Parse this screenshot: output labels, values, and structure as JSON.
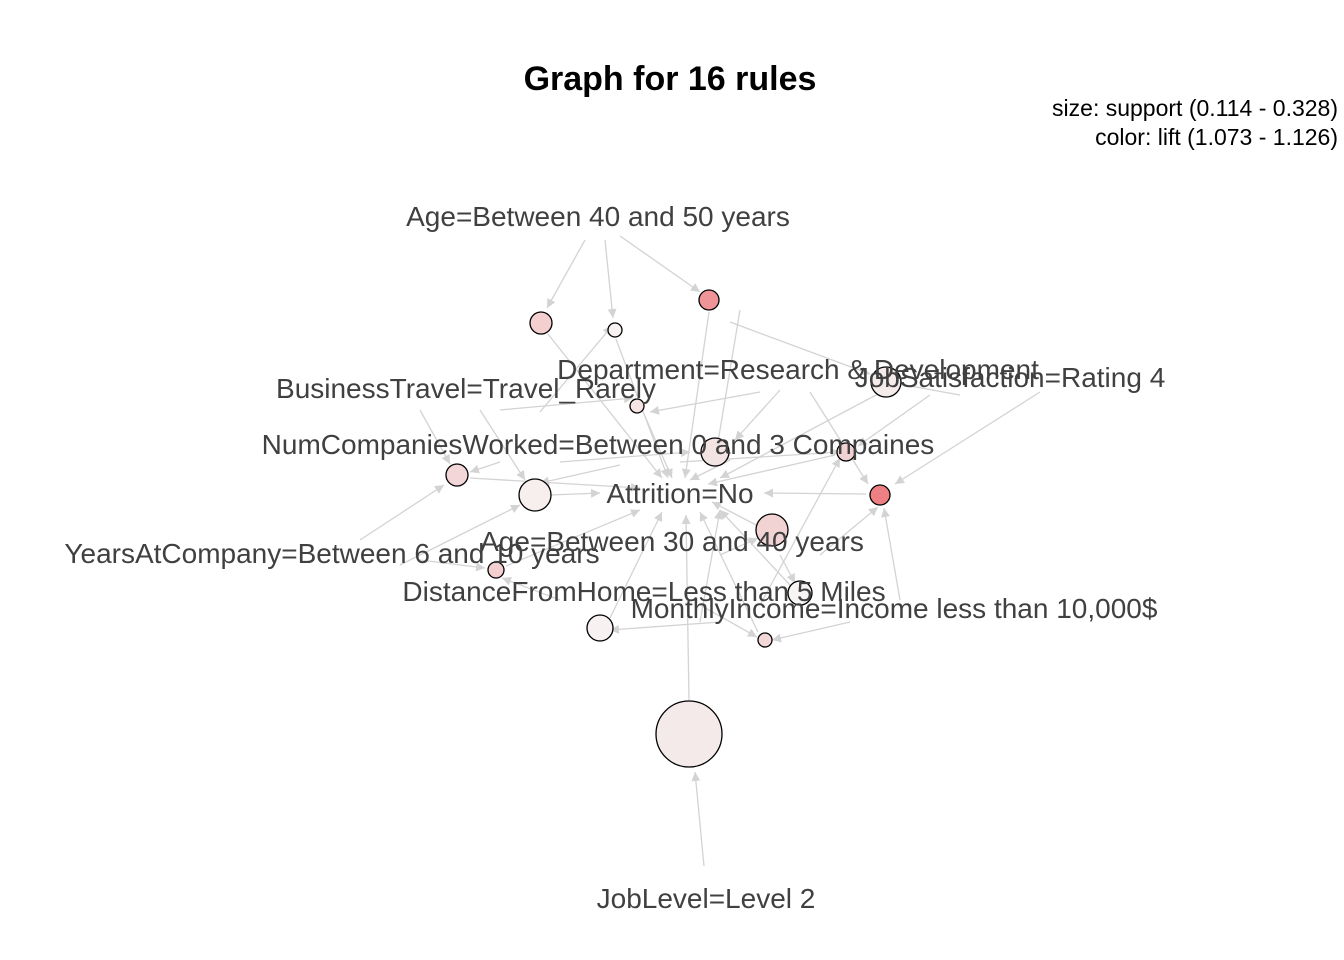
{
  "title": "Graph for 16 rules",
  "legend": {
    "size_line": "size: support (0.114 - 0.328)",
    "color_line": "color: lift (1.073 - 1.126)"
  },
  "items": [
    {
      "id": "age4050",
      "label": "Age=Between 40 and 50 years"
    },
    {
      "id": "dept",
      "label": "Department=Research & Development"
    },
    {
      "id": "jobsat",
      "label": "JobSatisfaction=Rating 4"
    },
    {
      "id": "travel",
      "label": "BusinessTravel=Travel_Rarely"
    },
    {
      "id": "numcomp",
      "label": "NumCompaniesWorked=Between 0 and 3 Compaines"
    },
    {
      "id": "attrition",
      "label": "Attrition=No"
    },
    {
      "id": "yearsco",
      "label": "YearsAtCompany=Between 6 and 10 years"
    },
    {
      "id": "age3040",
      "label": "Age=Between 30 and 40 years"
    },
    {
      "id": "distance",
      "label": "DistanceFromHome=Less than 5 Miles"
    },
    {
      "id": "income",
      "label": "MonthlyIncome=Income less than 10,000$"
    },
    {
      "id": "joblevel",
      "label": "JobLevel=Level 2"
    }
  ],
  "colors": {
    "edge": "#d3d3d3",
    "label": "#404040",
    "node_stroke": "#000000",
    "lift_low": "#f5eeee",
    "lift_high": "#ee7f82"
  }
}
